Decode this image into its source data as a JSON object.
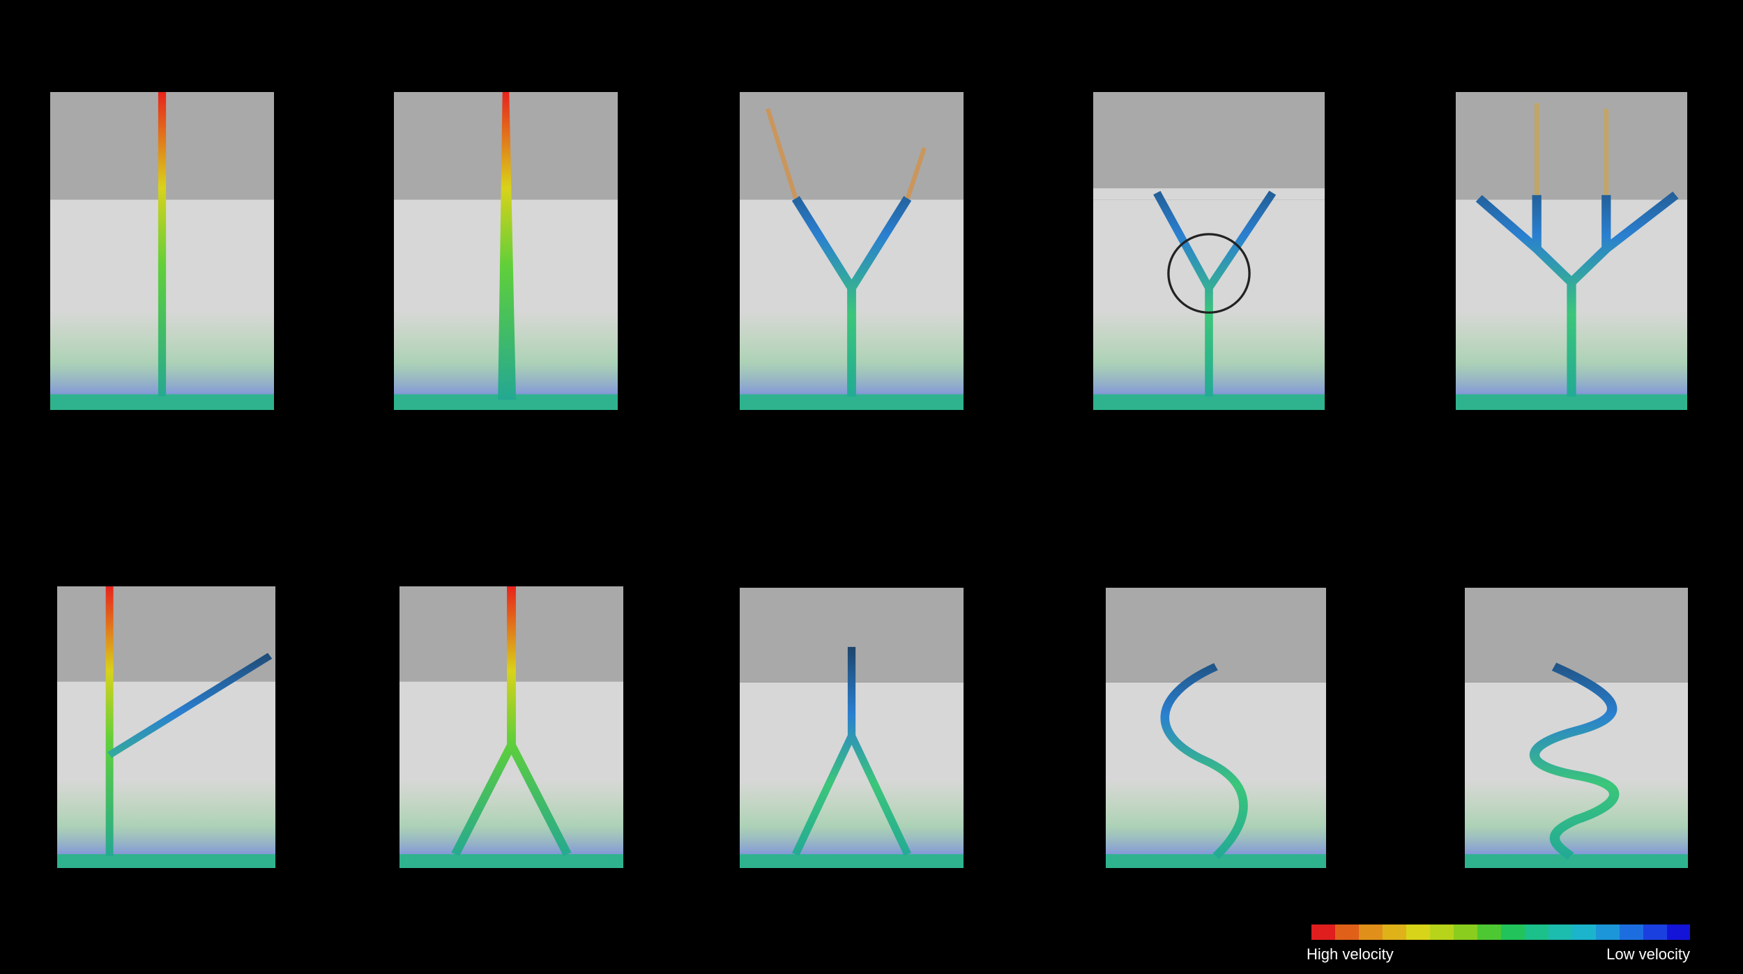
{
  "colorbar": {
    "high_label": "High velocity",
    "low_label": "Low velocity"
  }
}
